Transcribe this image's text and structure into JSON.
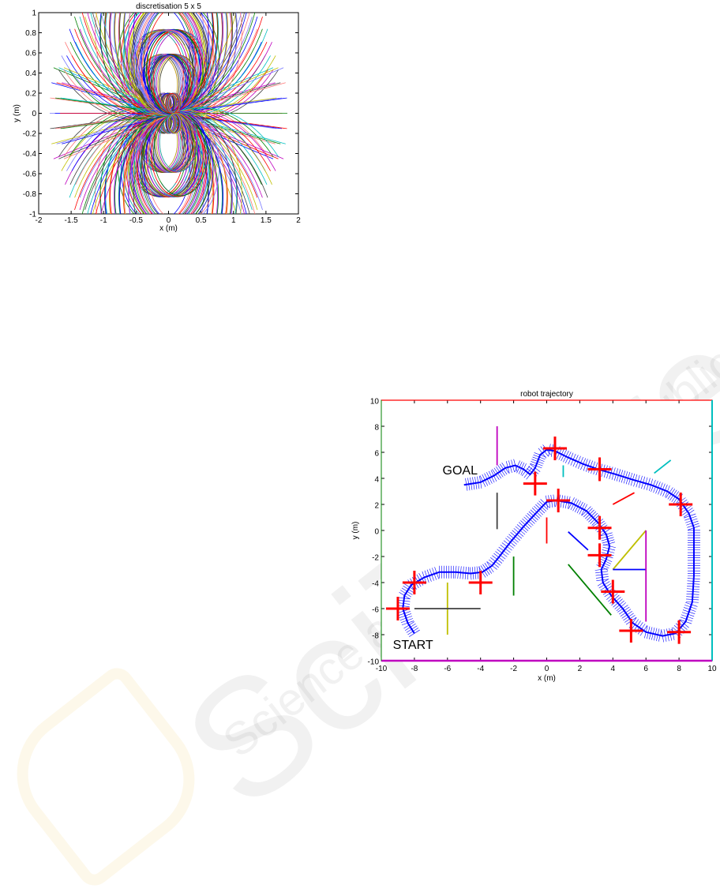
{
  "watermark": {
    "brand": "SciTePress",
    "tagline": "Science and Technology Publications"
  },
  "chart_data": [
    {
      "type": "line",
      "title": "discretisation 5 x 5",
      "xlabel": "x (m)",
      "ylabel": "y (m)",
      "xlim": [
        -2,
        2
      ],
      "ylim": [
        -1,
        1
      ],
      "xticks": [
        "-2",
        "-1.5",
        "-1",
        "-0.5",
        "0",
        "0.5",
        "1",
        "1.5",
        "2"
      ],
      "yticks": [
        "1",
        "0.8",
        "0.6",
        "0.4",
        "0.2",
        "0",
        "-0.2",
        "-0.4",
        "-0.6",
        "-0.8",
        "-1"
      ],
      "family": {
        "description_kind": "arc primitives from origin",
        "headings_deg": [
          -15,
          -10,
          -5,
          0,
          5,
          10,
          15
        ],
        "curvatures": [
          0,
          0.6,
          1.2,
          1.8,
          2.4,
          3.4,
          10,
          -0.6,
          -1.2,
          -1.8,
          -2.4,
          -3.4,
          -10
        ],
        "start_x": [
          -0.08,
          0,
          0.08
        ],
        "arc_length": 1.75
      },
      "colors": [
        "#0000ff",
        "#008000",
        "#ff0000",
        "#00bfbf",
        "#bf00bf",
        "#bfbf00",
        "#404040",
        "#7777ff",
        "#ff7777"
      ]
    },
    {
      "type": "line",
      "title": "robot trajectory",
      "xlabel": "x (m)",
      "ylabel": "y (m)",
      "xlim": [
        -10,
        10
      ],
      "ylim": [
        -10,
        10
      ],
      "xticks": [
        "-10",
        "-8",
        "-6",
        "-4",
        "-2",
        "0",
        "2",
        "4",
        "6",
        "8",
        "10"
      ],
      "yticks": [
        "10",
        "8",
        "6",
        "4",
        "2",
        "0",
        "-2",
        "-4",
        "-6",
        "-8",
        "-10"
      ],
      "annotations": [
        {
          "text": "GOAL",
          "x": -6.3,
          "y": 4.3
        },
        {
          "text": "START",
          "x": -9.3,
          "y": -9.1
        }
      ],
      "trajectory": {
        "color": "#0000ff",
        "x": [
          -8,
          -8.4,
          -8.7,
          -8.6,
          -8.2,
          -7.4,
          -6.5,
          -5.5,
          -4.6,
          -3.9,
          -3.3,
          -2.8,
          -2.2,
          -1.4,
          -0.6,
          0,
          0.6,
          1.5,
          2.4,
          3.1,
          3.6,
          3.8,
          3.6,
          3.3,
          3.4,
          3.9,
          4.6,
          5.2,
          6.0,
          7.0,
          7.8,
          8.4,
          8.8,
          8.9,
          8.9,
          8.9,
          8.6,
          8.0,
          7.3,
          6.3,
          5.2,
          4.2,
          3.1,
          2.2,
          1.3,
          0.5,
          0.0,
          -0.4,
          -0.7,
          -1.0,
          -1.4,
          -1.9,
          -2.5,
          -3.2,
          -4.0,
          -5.0
        ],
        "y": [
          -7.9,
          -7.1,
          -6.0,
          -5.0,
          -4.2,
          -3.6,
          -3.2,
          -3.2,
          -3.3,
          -3.2,
          -2.7,
          -1.9,
          -0.9,
          0.3,
          1.4,
          2.2,
          2.3,
          2.1,
          1.5,
          0.6,
          -0.3,
          -1.2,
          -2.2,
          -3.0,
          -4.0,
          -5.0,
          -6.0,
          -7.1,
          -7.8,
          -8.1,
          -7.9,
          -7.0,
          -5.5,
          -3.5,
          -1.5,
          0.2,
          1.3,
          2.4,
          3.0,
          3.5,
          3.9,
          4.3,
          4.7,
          5.1,
          5.6,
          6.1,
          6.2,
          5.8,
          4.8,
          4.3,
          4.7,
          5.0,
          4.8,
          4.2,
          3.7,
          3.5
        ]
      },
      "landmarks": {
        "color": "#ff0000",
        "x": [
          -9,
          -8,
          -4,
          -0.7,
          0.5,
          0.7,
          3.2,
          3.2,
          3.2,
          4,
          5.1,
          8,
          8.1
        ],
        "y": [
          -6,
          -4,
          -4,
          3.6,
          6.3,
          2.3,
          4.7,
          0.2,
          -1.9,
          -4.7,
          -7.7,
          -7.8,
          2
        ]
      },
      "segments": [
        {
          "color": "#bf00bf",
          "x": [
            -3,
            -3
          ],
          "y": [
            5,
            8
          ]
        },
        {
          "color": "#404040",
          "x": [
            -3,
            -3
          ],
          "y": [
            0.1,
            2.9
          ]
        },
        {
          "color": "#00bfbf",
          "x": [
            1,
            1
          ],
          "y": [
            4.1,
            5
          ]
        },
        {
          "color": "#ff0000",
          "x": [
            0,
            0
          ],
          "y": [
            -1,
            1
          ]
        },
        {
          "color": "#0000ff",
          "x": [
            1.3,
            2.5
          ],
          "y": [
            -0.1,
            -1.5
          ]
        },
        {
          "color": "#008000",
          "x": [
            -2,
            -2
          ],
          "y": [
            -2,
            -5
          ]
        },
        {
          "color": "#008000",
          "x": [
            1.3,
            3.9
          ],
          "y": [
            -2.6,
            -6.5
          ]
        },
        {
          "color": "#bfbf00",
          "x": [
            -6,
            -6
          ],
          "y": [
            -4,
            -8
          ]
        },
        {
          "color": "#404040",
          "x": [
            -8,
            -4
          ],
          "y": [
            -6,
            -6
          ]
        },
        {
          "color": "#bfbf00",
          "x": [
            4,
            6
          ],
          "y": [
            -3,
            0
          ]
        },
        {
          "color": "#0000ff",
          "x": [
            4,
            6
          ],
          "y": [
            -3,
            -3
          ]
        },
        {
          "color": "#bf00bf",
          "x": [
            6,
            6
          ],
          "y": [
            0,
            -7
          ]
        },
        {
          "color": "#ff0000",
          "x": [
            4,
            5.3
          ],
          "y": [
            2,
            2.9
          ]
        },
        {
          "color": "#00bfbf",
          "x": [
            6.5,
            7.5
          ],
          "y": [
            4.4,
            5.4
          ]
        }
      ],
      "border_colors": {
        "top": "#ff0000",
        "right": "#00bfbf",
        "bottom": "#bf00bf",
        "left": "#008000"
      }
    }
  ]
}
